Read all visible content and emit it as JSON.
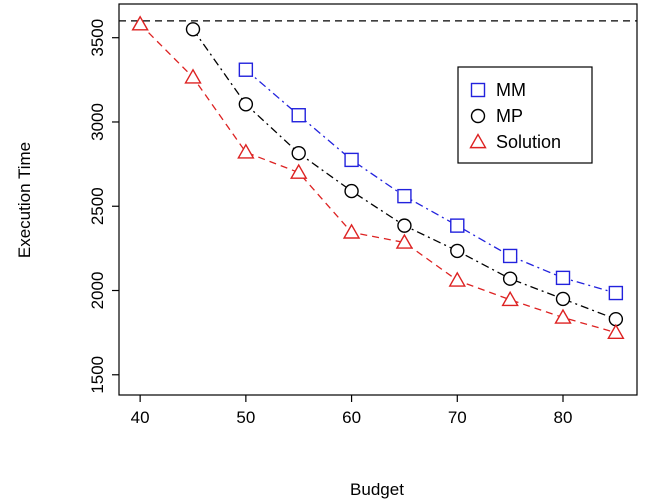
{
  "chart_data": {
    "type": "line",
    "title": "",
    "xlabel": "Budget",
    "ylabel": "Execution Time",
    "xlim": [
      38,
      87
    ],
    "ylim": [
      1380,
      3700
    ],
    "x_ticks": [
      40,
      50,
      60,
      70,
      80
    ],
    "y_ticks": [
      1500,
      2000,
      2500,
      3000,
      3500
    ],
    "grid": false,
    "legend_position": "top-right",
    "reference_line": {
      "y": 3600,
      "style": "dashed",
      "color": "#000000"
    },
    "series": [
      {
        "name": "MM",
        "marker": "square",
        "color": "#2222dd",
        "line_style": "dash-dot",
        "x": [
          50,
          55,
          60,
          65,
          70,
          75,
          80,
          85
        ],
        "values": [
          3310,
          3040,
          2775,
          2560,
          2385,
          2205,
          2075,
          1985
        ]
      },
      {
        "name": "MP",
        "marker": "circle",
        "color": "#000000",
        "line_style": "dash-dot",
        "x": [
          45,
          50,
          55,
          60,
          65,
          70,
          75,
          80,
          85
        ],
        "values": [
          3550,
          3105,
          2815,
          2590,
          2385,
          2235,
          2070,
          1950,
          1830
        ]
      },
      {
        "name": "Solution",
        "marker": "triangle",
        "color": "#dd2222",
        "line_style": "dashed",
        "x": [
          40,
          45,
          50,
          55,
          60,
          65,
          70,
          75,
          80,
          85
        ],
        "values": [
          3580,
          3265,
          2820,
          2700,
          2345,
          2285,
          2060,
          1945,
          1840,
          1750
        ]
      }
    ]
  }
}
